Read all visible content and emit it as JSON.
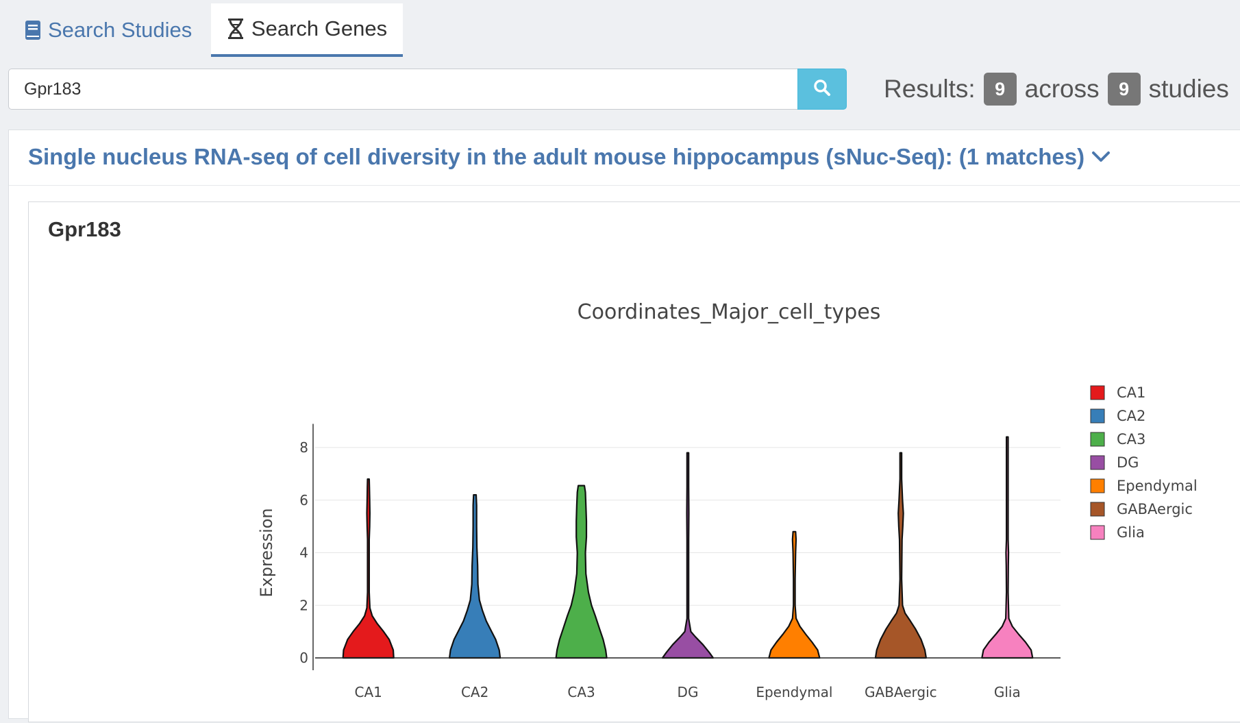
{
  "tabs": [
    {
      "label": "Search Studies",
      "active": false
    },
    {
      "label": "Search Genes",
      "active": true
    }
  ],
  "search": {
    "value": "Gpr183"
  },
  "results": {
    "label": "Results:",
    "count": "9",
    "across": "across",
    "studies_count": "9",
    "studies": "studies"
  },
  "study": {
    "title": "Single nucleus RNA-seq of cell diversity in the adult mouse hippocampus (sNuc-Seq): (1 matches)"
  },
  "gene": {
    "name": "Gpr183"
  },
  "colors": {
    "accent": "#4a77ad",
    "search_button": "#5bc0de",
    "badge": "#777777"
  },
  "chart_data": {
    "type": "violin",
    "title": "Coordinates_Major_cell_types",
    "ylabel": "Expression",
    "xlabel": "",
    "ylim": [
      0,
      8.6
    ],
    "yticks": [
      0,
      2,
      4,
      6,
      8
    ],
    "grid": true,
    "legend_position": "right",
    "categories": [
      "CA1",
      "CA2",
      "CA3",
      "DG",
      "Ependymal",
      "GABAergic",
      "Glia"
    ],
    "series": [
      {
        "name": "CA1",
        "color": "#e41a1c",
        "max": 6.8,
        "profile": [
          [
            0,
            1.0
          ],
          [
            0.3,
            0.98
          ],
          [
            0.7,
            0.82
          ],
          [
            1.0,
            0.6
          ],
          [
            1.3,
            0.35
          ],
          [
            1.6,
            0.15
          ],
          [
            1.9,
            0.06
          ],
          [
            2.5,
            0.03
          ],
          [
            4.5,
            0.025
          ],
          [
            5.0,
            0.05
          ],
          [
            5.5,
            0.06
          ],
          [
            6.0,
            0.05
          ],
          [
            6.5,
            0.04
          ],
          [
            6.8,
            0.02
          ]
        ]
      },
      {
        "name": "CA2",
        "color": "#377eb8",
        "max": 6.2,
        "profile": [
          [
            0,
            1.0
          ],
          [
            0.3,
            0.96
          ],
          [
            0.7,
            0.82
          ],
          [
            1.0,
            0.66
          ],
          [
            1.4,
            0.45
          ],
          [
            1.8,
            0.3
          ],
          [
            2.2,
            0.18
          ],
          [
            2.8,
            0.12
          ],
          [
            3.5,
            0.11
          ],
          [
            4.2,
            0.08
          ],
          [
            5.0,
            0.07
          ],
          [
            5.8,
            0.07
          ],
          [
            6.2,
            0.05
          ]
        ]
      },
      {
        "name": "CA3",
        "color": "#4daf4a",
        "max": 6.55,
        "profile": [
          [
            0,
            1.0
          ],
          [
            0.3,
            0.96
          ],
          [
            0.7,
            0.86
          ],
          [
            1.1,
            0.72
          ],
          [
            1.6,
            0.55
          ],
          [
            2.0,
            0.4
          ],
          [
            2.5,
            0.28
          ],
          [
            3.2,
            0.18
          ],
          [
            4.0,
            0.16
          ],
          [
            4.6,
            0.2
          ],
          [
            5.2,
            0.2
          ],
          [
            5.8,
            0.18
          ],
          [
            6.3,
            0.16
          ],
          [
            6.55,
            0.12
          ]
        ]
      },
      {
        "name": "DG",
        "color": "#984ea3",
        "max": 7.8,
        "profile": [
          [
            0,
            1.0
          ],
          [
            0.2,
            0.85
          ],
          [
            0.5,
            0.6
          ],
          [
            0.8,
            0.3
          ],
          [
            1.0,
            0.12
          ],
          [
            1.5,
            0.03
          ],
          [
            3.0,
            0.02
          ],
          [
            4.5,
            0.03
          ],
          [
            5.5,
            0.04
          ],
          [
            6.5,
            0.02
          ],
          [
            7.8,
            0.01
          ]
        ]
      },
      {
        "name": "Ependymal",
        "color": "#ff7f00",
        "max": 4.8,
        "profile": [
          [
            0,
            1.0
          ],
          [
            0.3,
            0.92
          ],
          [
            0.6,
            0.7
          ],
          [
            0.9,
            0.45
          ],
          [
            1.2,
            0.22
          ],
          [
            1.5,
            0.07
          ],
          [
            2.0,
            0.03
          ],
          [
            3.0,
            0.03
          ],
          [
            4.0,
            0.05
          ],
          [
            4.5,
            0.07
          ],
          [
            4.8,
            0.05
          ]
        ]
      },
      {
        "name": "GABAergic",
        "color": "#a65628",
        "max": 7.8,
        "profile": [
          [
            0,
            1.0
          ],
          [
            0.3,
            0.95
          ],
          [
            0.7,
            0.8
          ],
          [
            1.1,
            0.58
          ],
          [
            1.4,
            0.38
          ],
          [
            1.7,
            0.17
          ],
          [
            2.0,
            0.07
          ],
          [
            3.0,
            0.03
          ],
          [
            4.5,
            0.05
          ],
          [
            5.0,
            0.08
          ],
          [
            5.5,
            0.1
          ],
          [
            6.0,
            0.07
          ],
          [
            6.8,
            0.03
          ],
          [
            7.8,
            0.02
          ]
        ]
      },
      {
        "name": "Glia",
        "color": "#f781bf",
        "max": 8.4,
        "profile": [
          [
            0,
            1.0
          ],
          [
            0.3,
            0.94
          ],
          [
            0.6,
            0.72
          ],
          [
            0.9,
            0.45
          ],
          [
            1.2,
            0.2
          ],
          [
            1.5,
            0.06
          ],
          [
            2.5,
            0.02
          ],
          [
            3.5,
            0.04
          ],
          [
            4.0,
            0.05
          ],
          [
            4.5,
            0.03
          ],
          [
            6.0,
            0.02
          ],
          [
            8.4,
            0.01
          ]
        ]
      }
    ]
  }
}
